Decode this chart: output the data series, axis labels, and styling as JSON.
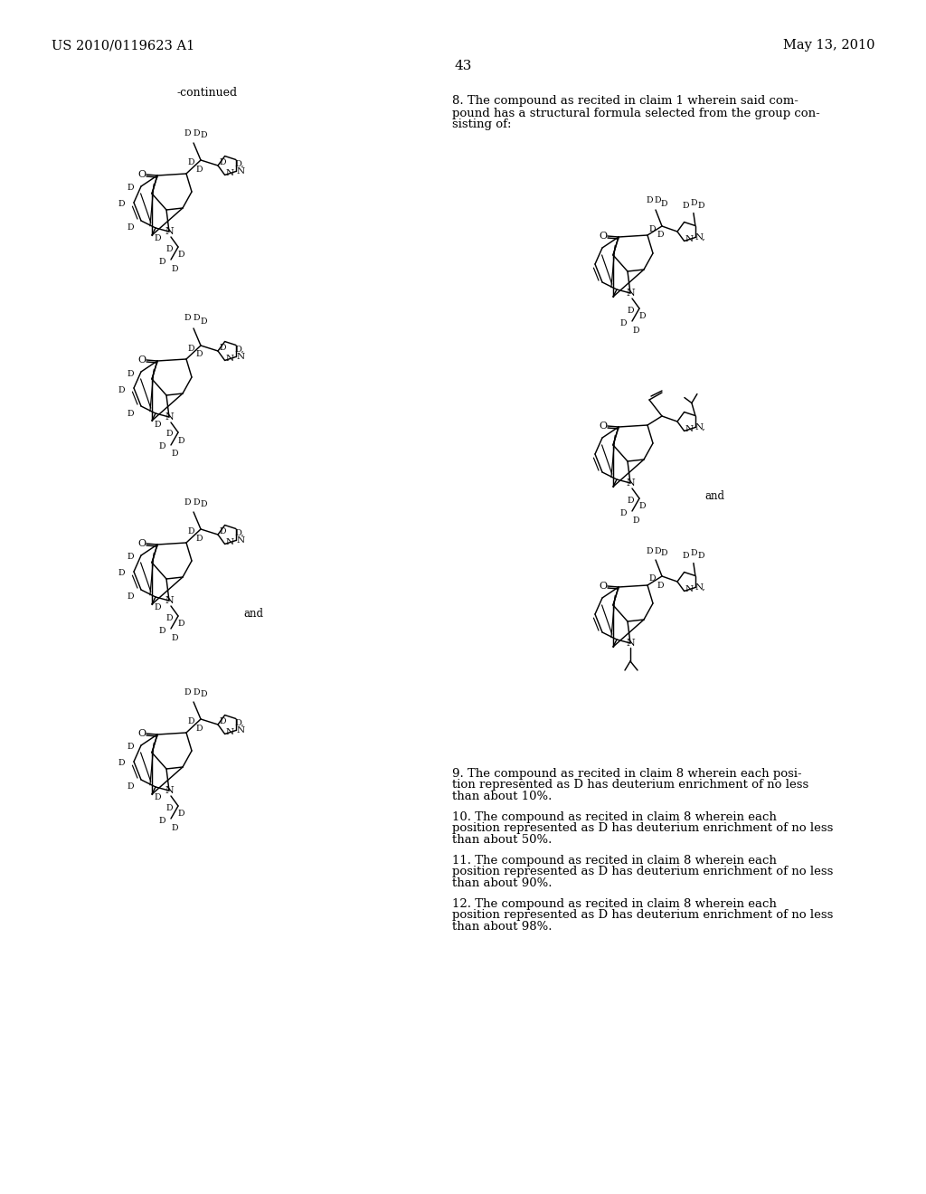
{
  "bg": "#ffffff",
  "header_left": "US 2010/0119623 A1",
  "header_right": "May 13, 2010",
  "page_num": "43",
  "continued": "-continued",
  "c8l1": "8. The compound as recited in claim 1 wherein said com-",
  "c8l2": "pound has a structural formula selected from the group con-",
  "c8l3": "sisting of:",
  "c9l1": "9. The compound as recited in claim 8 wherein each posi-",
  "c9l2": "tion represented as D has deuterium enrichment of no less",
  "c9l3": "than about 10%.",
  "c10l1": "10. The compound as recited in claim 8 wherein each",
  "c10l2": "position represented as D has deuterium enrichment of no less",
  "c10l3": "than about 50%.",
  "c11l1": "11. The compound as recited in claim 8 wherein each",
  "c11l2": "position represented as D has deuterium enrichment of no less",
  "c11l3": "than about 90%.",
  "c12l1": "12. The compound as recited in claim 8 wherein each",
  "c12l2": "position represented as D has deuterium enrichment of no less",
  "c12l3": "than about 98%."
}
